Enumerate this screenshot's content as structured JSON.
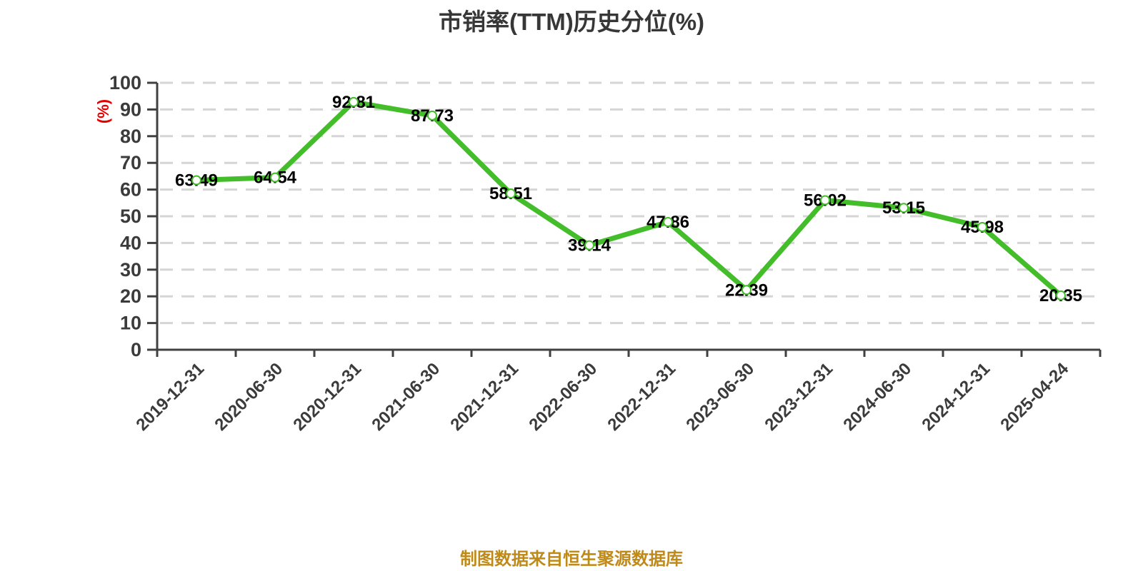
{
  "header": {
    "title": "市销率(TTM)历史分位(%)"
  },
  "footer": {
    "source_text": "制图数据来自恒生聚源数据库"
  },
  "chart_data": {
    "type": "line",
    "title": "市销率(TTM)历史分位(%)",
    "categories": [
      "2019-12-31",
      "2020-06-30",
      "2020-12-31",
      "2021-06-30",
      "2021-12-31",
      "2022-06-30",
      "2022-12-31",
      "2023-06-30",
      "2023-12-31",
      "2024-06-30",
      "2024-12-31",
      "2025-04-24"
    ],
    "values": [
      63.49,
      64.54,
      92.81,
      87.73,
      58.51,
      39.14,
      47.86,
      22.39,
      56.02,
      53.15,
      45.98,
      20.35
    ],
    "xlabel": "",
    "ylabel": "(%)",
    "ylim": [
      0,
      100
    ],
    "y_ticks": [
      0,
      10,
      20,
      30,
      40,
      50,
      60,
      70,
      80,
      90,
      100
    ],
    "grid": true,
    "grid_style": "dashed",
    "legend_position": "none",
    "x_label_rotation": 45,
    "colors": {
      "line": "#43bd29",
      "point_fill": "#ffffff",
      "point_stroke": "#43bd29",
      "value_label": "#000000",
      "axis": "#404040",
      "tick_label": "#3b3b3b",
      "grid_line": "#d5d5d5",
      "ylabel_color": "#e60000",
      "title_color": "#373737",
      "footer_color": "#bf8a17"
    }
  }
}
